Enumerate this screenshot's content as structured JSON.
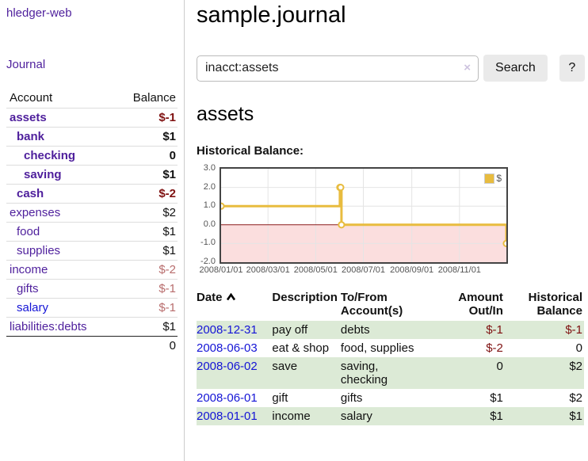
{
  "app": {
    "brand": "hledger-web",
    "nav_journal": "Journal"
  },
  "sidebar": {
    "header": {
      "account": "Account",
      "balance": "Balance"
    },
    "accounts": [
      {
        "name": "assets",
        "level": 1,
        "balance": "$-1",
        "bold": true,
        "neg": "dark"
      },
      {
        "name": "bank",
        "level": 2,
        "balance": "$1",
        "bold": true,
        "neg": ""
      },
      {
        "name": "checking",
        "level": 3,
        "balance": "0",
        "bold": true,
        "neg": ""
      },
      {
        "name": "saving",
        "level": 3,
        "balance": "$1",
        "bold": true,
        "neg": ""
      },
      {
        "name": "cash",
        "level": 2,
        "balance": "$-2",
        "bold": true,
        "neg": "dark"
      },
      {
        "name": "expenses",
        "level": 1,
        "balance": "$2",
        "bold": false,
        "neg": ""
      },
      {
        "name": "food",
        "level": 2,
        "balance": "$1",
        "bold": false,
        "neg": ""
      },
      {
        "name": "supplies",
        "level": 2,
        "balance": "$1",
        "bold": false,
        "neg": ""
      },
      {
        "name": "income",
        "level": 1,
        "balance": "$-2",
        "bold": false,
        "neg": "light"
      },
      {
        "name": "gifts",
        "level": 2,
        "balance": "$-1",
        "bold": false,
        "neg": "light"
      },
      {
        "name": "salary",
        "level": 2,
        "balance": "$-1",
        "bold": false,
        "neg": "light",
        "unvisited": true
      },
      {
        "name": "liabilities:debts",
        "level": 1,
        "balance": "$1",
        "bold": false,
        "neg": ""
      }
    ],
    "total": "0"
  },
  "header": {
    "title": "sample.journal"
  },
  "search": {
    "value": "inacct:assets",
    "clear_icon": "×",
    "button_label": "Search",
    "help_label": "?"
  },
  "main": {
    "account_title": "assets",
    "section_label": "Historical Balance:"
  },
  "chart_data": {
    "type": "line",
    "step": true,
    "title": "Historical Balance:",
    "xlabel": "",
    "ylabel": "",
    "legend": "$",
    "legend_position": "top-right",
    "grid": true,
    "ylim": [
      -2,
      3
    ],
    "yticks": [
      3.0,
      2.0,
      1.0,
      0.0,
      -1.0,
      -2.0
    ],
    "xticks": [
      "2008/01/01",
      "2008/03/01",
      "2008/05/01",
      "2008/07/01",
      "2008/09/01",
      "2008/11/01"
    ],
    "x_start": "2008-01-01",
    "x_end": "2008-12-31",
    "series": [
      {
        "name": "$",
        "color": "#e8bc3f",
        "points": [
          [
            "2008-01-01",
            1
          ],
          [
            "2008-06-01",
            2
          ],
          [
            "2008-06-02",
            2
          ],
          [
            "2008-06-03",
            0
          ],
          [
            "2008-12-31",
            -1
          ]
        ]
      }
    ],
    "negative_region_color": "#fbdede",
    "zero_line_color": "#8b1a1a",
    "gridline_color": "#e4e4e4"
  },
  "table": {
    "headers": {
      "date": "Date",
      "description": "Description",
      "accounts": "To/From Account(s)",
      "amount": "Amount Out/In",
      "balance": "Historical Balance"
    },
    "rows": [
      {
        "date": "2008-12-31",
        "description": "pay off",
        "accounts": "debts",
        "amount": "$-1",
        "amount_neg": true,
        "balance": "$-1",
        "balance_neg": true,
        "shaded": true
      },
      {
        "date": "2008-06-03",
        "description": "eat & shop",
        "accounts": "food, supplies",
        "amount": "$-2",
        "amount_neg": true,
        "balance": "0",
        "balance_neg": false,
        "shaded": false
      },
      {
        "date": "2008-06-02",
        "description": "save",
        "accounts": "saving, checking",
        "amount": "0",
        "amount_neg": false,
        "balance": "$2",
        "balance_neg": false,
        "shaded": true
      },
      {
        "date": "2008-06-01",
        "description": "gift",
        "accounts": "gifts",
        "amount": "$1",
        "amount_neg": false,
        "balance": "$2",
        "balance_neg": false,
        "shaded": false
      },
      {
        "date": "2008-01-01",
        "description": "income",
        "accounts": "salary",
        "amount": "$1",
        "amount_neg": false,
        "balance": "$1",
        "balance_neg": false,
        "shaded": true
      }
    ]
  }
}
